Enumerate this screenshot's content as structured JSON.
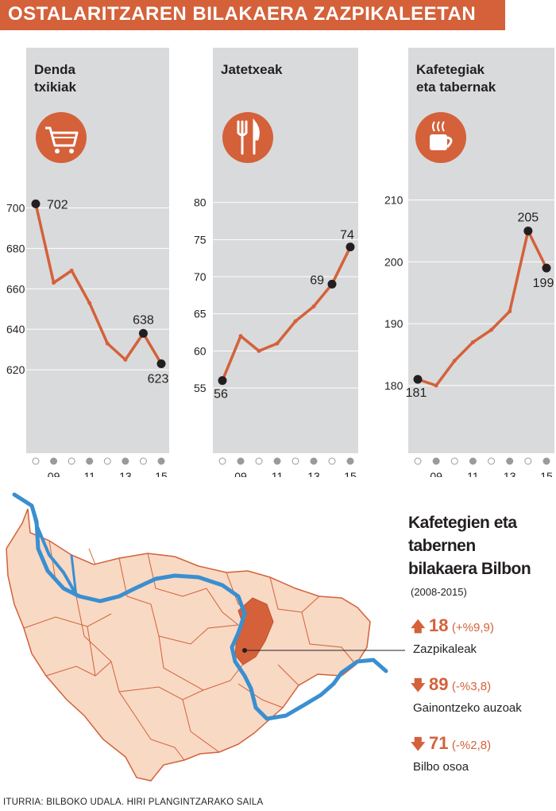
{
  "title": "OSTALARITZAREN BILAKAERA ZAZPIKALEETAN",
  "colors": {
    "accent": "#d4613a",
    "panel": "#d9dadb",
    "river": "#3a8fd0",
    "map_fill": "#f8d9c4",
    "map_line": "#d4613a",
    "highlight": "#d4613a"
  },
  "chart_data": [
    {
      "type": "line",
      "title": "Denda txikiak",
      "icon": "shopping-cart-icon",
      "x": [
        2008,
        2009,
        2010,
        2011,
        2012,
        2013,
        2014,
        2015
      ],
      "x_tick_labels": [
        "",
        "09",
        "",
        "11",
        "",
        "13",
        "",
        "15"
      ],
      "values": [
        702,
        663,
        669,
        653,
        633,
        625,
        638,
        623
      ],
      "ylim": [
        600,
        710
      ],
      "yticks": [
        620,
        640,
        660,
        680,
        700
      ],
      "labeled_points": [
        {
          "index": 0,
          "label": "702"
        },
        {
          "index": 6,
          "label": "638"
        },
        {
          "index": 7,
          "label": "623"
        }
      ]
    },
    {
      "type": "line",
      "title": "Jatetxeak",
      "icon": "fork-knife-icon",
      "x": [
        2008,
        2009,
        2010,
        2011,
        2012,
        2013,
        2014,
        2015
      ],
      "x_tick_labels": [
        "",
        "09",
        "",
        "11",
        "",
        "13",
        "",
        "15"
      ],
      "values": [
        56,
        62,
        60,
        61,
        64,
        66,
        69,
        74
      ],
      "ylim": [
        52,
        82
      ],
      "yticks": [
        55,
        60,
        65,
        70,
        75,
        80
      ],
      "labeled_points": [
        {
          "index": 0,
          "label": "56"
        },
        {
          "index": 6,
          "label": "69"
        },
        {
          "index": 7,
          "label": "74"
        }
      ]
    },
    {
      "type": "line",
      "title": "Kafetegiak eta tabernak",
      "icon": "coffee-cup-icon",
      "x": [
        2008,
        2009,
        2010,
        2011,
        2012,
        2013,
        2014,
        2015
      ],
      "x_tick_labels": [
        "",
        "09",
        "",
        "11",
        "",
        "13",
        "",
        "15"
      ],
      "values": [
        181,
        180,
        184,
        187,
        189,
        192,
        205,
        199
      ],
      "ylim": [
        176,
        212
      ],
      "yticks": [
        180,
        190,
        200,
        210
      ],
      "labeled_points": [
        {
          "index": 0,
          "label": "181"
        },
        {
          "index": 6,
          "label": "205"
        },
        {
          "index": 7,
          "label": "199"
        }
      ]
    }
  ],
  "side": {
    "title_lines": [
      "Kafetegien eta",
      "tabernen",
      "bilakaera Bilbon"
    ],
    "subtitle": "(2008-2015)",
    "stats": [
      {
        "direction": "up",
        "value": "18",
        "pct": "(+%9,9)",
        "label": "Zazpikaleak"
      },
      {
        "direction": "down",
        "value": "89",
        "pct": "(-%3,8)",
        "label": "Gainontzeko auzoak"
      },
      {
        "direction": "down",
        "value": "71",
        "pct": "(-%2,8)",
        "label": "Bilbo osoa"
      }
    ]
  },
  "source": "ITURRIA: BILBOKO UDALA. HIRI PLANGINTZARAKO SAILA"
}
